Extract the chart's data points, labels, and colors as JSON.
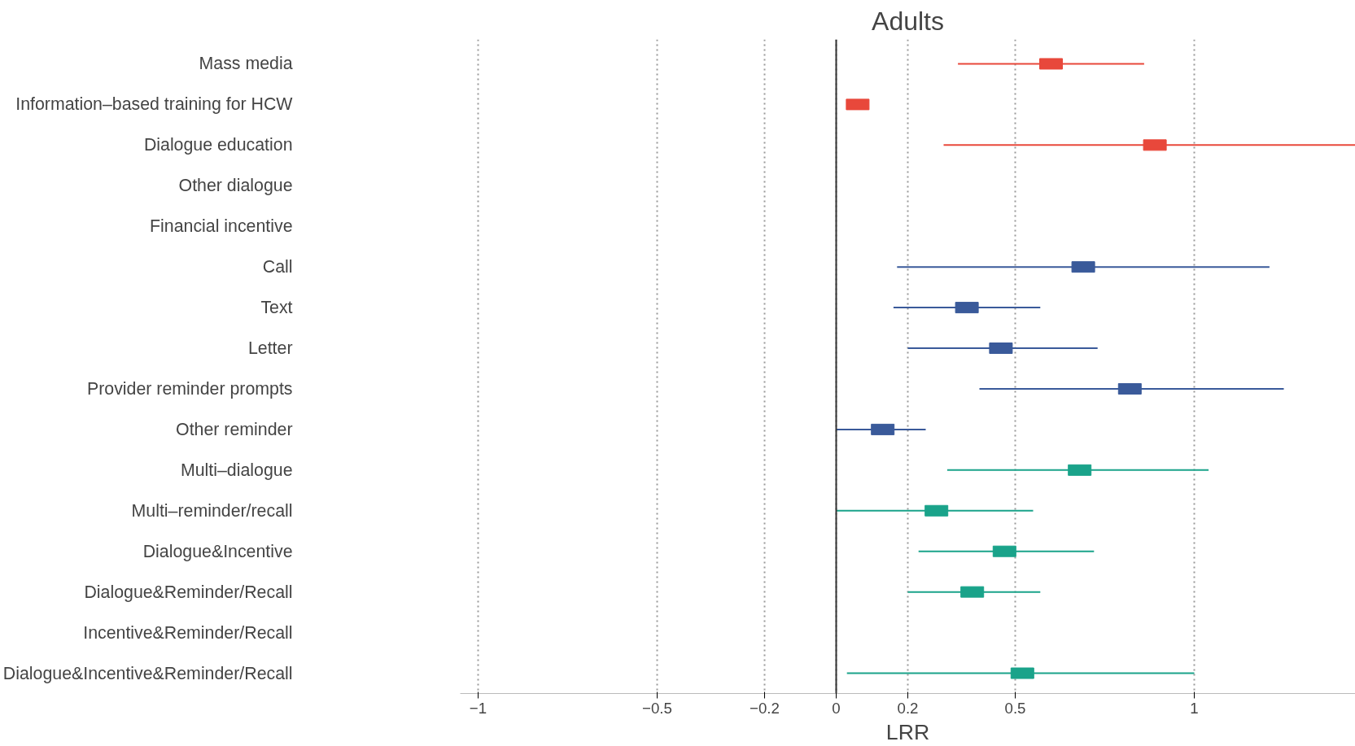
{
  "chart_data": {
    "type": "scatter",
    "orientation": "horizontal",
    "title": "Adults",
    "xlabel": "LRR",
    "categories": [
      "Mass media",
      "Information–based training for HCW",
      "Dialogue education",
      "Other dialogue",
      "Financial incentive",
      "Call",
      "Text",
      "Letter",
      "Provider reminder prompts",
      "Other reminder",
      "Multi–dialogue",
      "Multi–reminder/recall",
      "Dialogue&Incentive",
      "Dialogue&Reminder/Recall",
      "Incentive&Reminder/Recall",
      "Dialogue&Incentive&Reminder/Recall"
    ],
    "series": [
      {
        "color": "#e8483b",
        "values": [
          0.6,
          0.06,
          0.89,
          null,
          null,
          null,
          null,
          null,
          null,
          null,
          null,
          null,
          null,
          null,
          null,
          null
        ],
        "errors": [
          [
            0.34,
            0.86
          ],
          null,
          [
            0.3,
            1.45
          ],
          null,
          null,
          null,
          null,
          null,
          null,
          null,
          null,
          null,
          null,
          null,
          null,
          null
        ]
      },
      {
        "color": "#3a5a9a",
        "values": [
          null,
          null,
          null,
          null,
          null,
          0.69,
          0.365,
          0.46,
          0.82,
          0.13,
          null,
          null,
          null,
          null,
          null,
          null
        ],
        "errors": [
          null,
          null,
          null,
          null,
          null,
          [
            0.17,
            1.21
          ],
          [
            0.16,
            0.57
          ],
          [
            0.2,
            0.73
          ],
          [
            0.4,
            1.25
          ],
          [
            0.0,
            0.25
          ],
          null,
          null,
          null,
          null,
          null,
          null
        ]
      },
      {
        "color": "#1aa38a",
        "values": [
          null,
          null,
          null,
          null,
          null,
          null,
          null,
          null,
          null,
          null,
          0.68,
          0.28,
          0.47,
          0.38,
          null,
          0.52
        ],
        "errors": [
          null,
          null,
          null,
          null,
          null,
          null,
          null,
          null,
          null,
          null,
          [
            0.31,
            1.04
          ],
          [
            0.0,
            0.55
          ],
          [
            0.23,
            0.72
          ],
          [
            0.2,
            0.57
          ],
          null,
          [
            0.03,
            1.0
          ]
        ]
      }
    ],
    "xlim": [
      -1.05,
      1.45
    ],
    "xticks": [
      {
        "value": -1,
        "label": "−1"
      },
      {
        "value": -0.5,
        "label": "−0.5"
      },
      {
        "value": -0.2,
        "label": "−0.2"
      },
      0,
      0.2,
      0.5,
      1
    ],
    "grid": "x",
    "line_style": "dotted",
    "marker": "square",
    "ref_lines": [
      {
        "axis": "x",
        "value": 0,
        "color": "#333333",
        "line_style": "solid"
      }
    ]
  }
}
